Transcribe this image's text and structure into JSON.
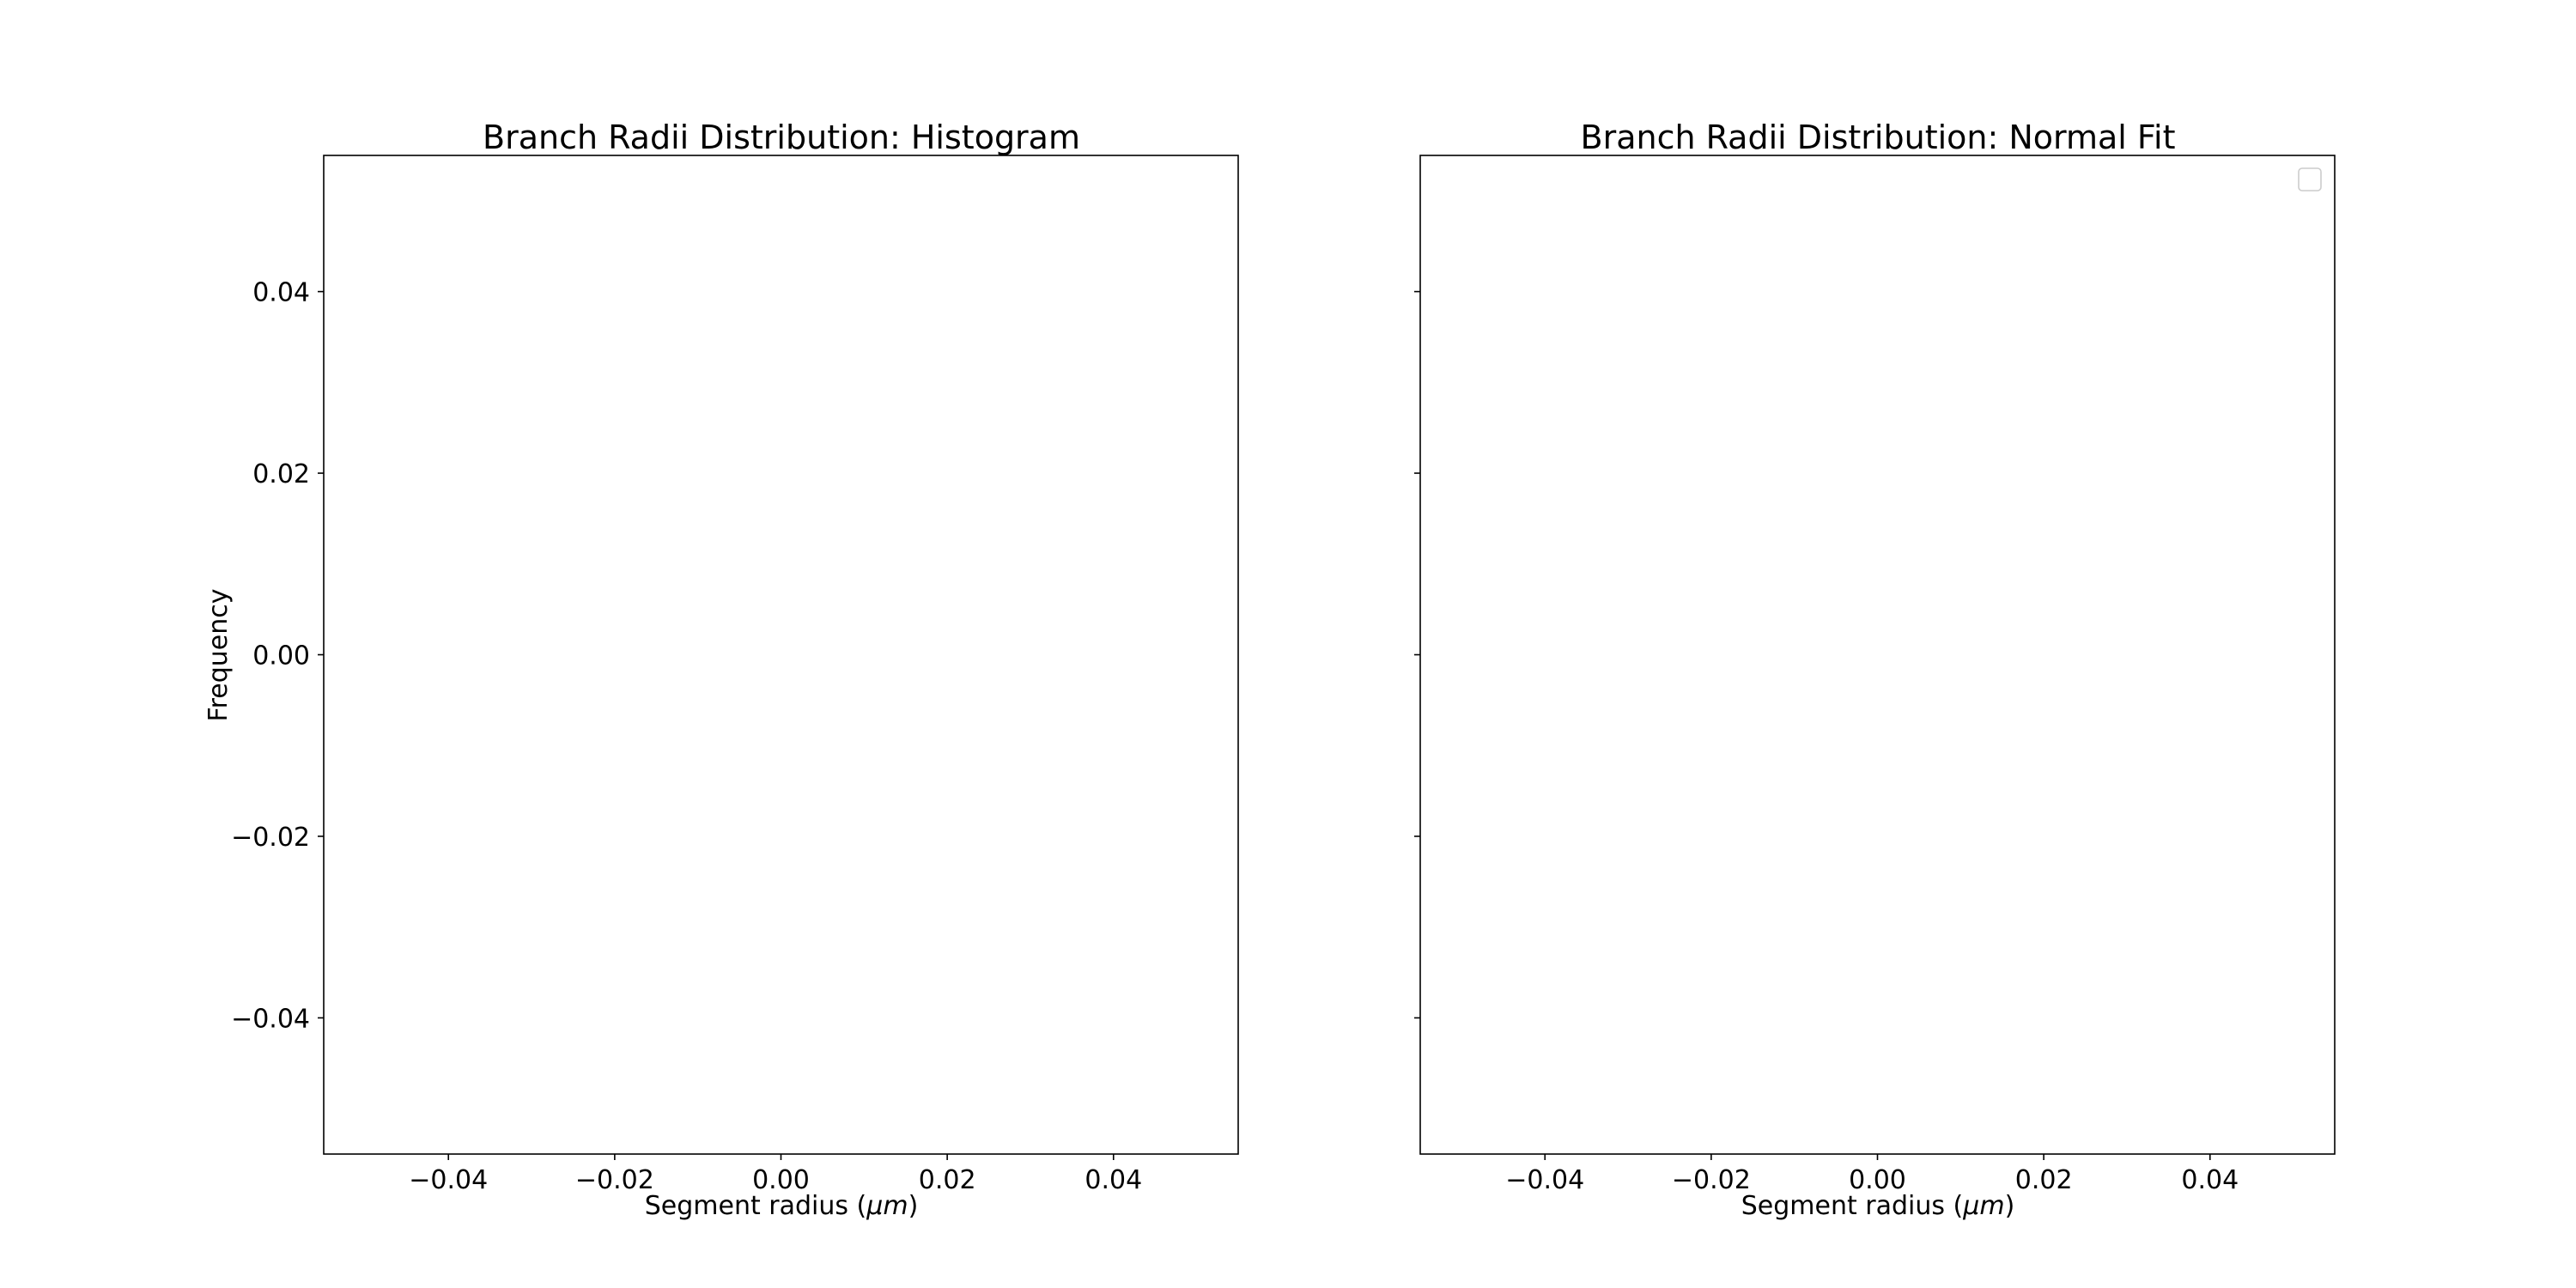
{
  "chart_data": [
    {
      "type": "bar",
      "title": "Branch Radii Distribution: Histogram",
      "xlabel": "Segment radius ",
      "xlabel_unit": "μm",
      "ylabel": "Frequency",
      "xlim": [
        -0.055,
        0.055
      ],
      "ylim": [
        -0.055,
        0.055
      ],
      "x_ticks": [
        "−0.04",
        "−0.02",
        "0.00",
        "0.02",
        "0.04"
      ],
      "y_ticks": [
        "−0.04",
        "−0.02",
        "0.00",
        "0.02",
        "0.04"
      ],
      "values": [],
      "grid": false
    },
    {
      "type": "line",
      "title": "Branch Radii Distribution: Normal Fit",
      "xlabel": "Segment radius ",
      "xlabel_unit": "μm",
      "ylabel": "",
      "xlim": [
        -0.055,
        0.055
      ],
      "ylim": [
        -0.055,
        0.055
      ],
      "x_ticks": [
        "−0.04",
        "−0.02",
        "0.00",
        "0.02",
        "0.04"
      ],
      "y_ticks": [],
      "series": [],
      "legend": "top-right",
      "grid": false
    }
  ],
  "colors": {
    "axes": "#000000",
    "background": "#ffffff",
    "legend_border": "#cccccc"
  }
}
